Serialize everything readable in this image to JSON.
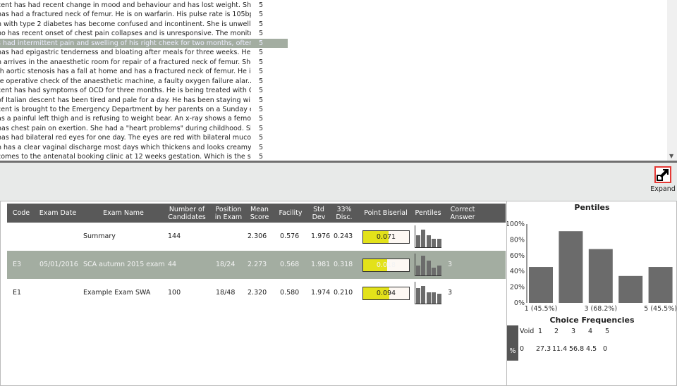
{
  "question_list": {
    "rows": [
      {
        "text": "cent has had recent change in mood and behaviour and has lost weight. She has...",
        "count": "5"
      },
      {
        "text": "has had a fractured neck of femur. He is on warfarin. His pulse rate is 105bpm...",
        "count": "5"
      },
      {
        "text": "n with type 2 diabetes has become confused and incontinent. She is unwell, wit...",
        "count": "5"
      },
      {
        "text": "ho has recent onset of chest pain collapses and is unresponsive. The monitor s...",
        "count": "5"
      },
      {
        "text": "s had intermittent pain and swelling of his right cheek for two months, often...",
        "count": "5",
        "selected": true
      },
      {
        "text": " has had epigastric tenderness and bloating after meals for three weeks. Her m...",
        "count": "5"
      },
      {
        "text": "n arrives in the anaesthetic room for repair of a fractured neck of femur. She...",
        "count": "5"
      },
      {
        "text": "th aortic stenosis has a fall at home and has a fractured neck of femur. He i...",
        "count": "5"
      },
      {
        "text": "re operative check of the anaesthetic machine, a faulty oxygen failure alar...",
        "count": "5"
      },
      {
        "text": "cent has had symptoms of OCD for three months. He is being treated with CBT,...",
        "count": "5"
      },
      {
        "text": " of Italian descent has been tired and pale for a day. He has been staying wi...",
        "count": "5"
      },
      {
        "text": "cent is brought to the Emergency Department by her parents on a Sunday evenin...",
        "count": "5"
      },
      {
        "text": "as a painful left thigh and is refusing to weight bear. An x-ray shows a femo...",
        "count": "5"
      },
      {
        "text": " has chest pain on exertion. She had a \"heart problems\" during childhood. She...",
        "count": "5"
      },
      {
        "text": " has had bilateral red eyes for one day. The eyes are red with bilateral mucop...",
        "count": "5"
      },
      {
        "text": "n has a clear vaginal discharge most days which thickens and looks creamy each...",
        "count": "5"
      },
      {
        "text": " comes to the antenatal booking clinic at 12 weeks gestation. Which is the sin...",
        "count": "5"
      }
    ]
  },
  "toolbar": {
    "expand_label": "Expand",
    "expand_icon": "expand-arrow-icon"
  },
  "table": {
    "headers": [
      "Code",
      "Exam Date",
      "Exam Name",
      "Number of Candidates",
      "Position in Exam",
      "Mean Score",
      "Facility",
      "Std Dev",
      "33% Disc.",
      "Point Biserial",
      "Pentiles",
      "Correct Answer"
    ],
    "rows": [
      {
        "code": "",
        "date": "",
        "name": "Summary",
        "candidates": "144",
        "position": "",
        "mean": "2.306",
        "facility": "0.576",
        "std": "1.976",
        "disc": "0.243",
        "pb": "0.071",
        "pb_fill": 0.56,
        "pentiles": [
          55,
          80,
          55,
          38,
          38
        ],
        "correct": ""
      },
      {
        "code": "E3",
        "date": "05/01/2016",
        "name": "SCA autumn 2015 exam",
        "candidates": "44",
        "position": "18/24",
        "mean": "2.273",
        "facility": "0.568",
        "std": "1.981",
        "disc": "0.318",
        "pb": "0.018",
        "pb_fill": 0.53,
        "pentiles": [
          45.5,
          90.9,
          68.2,
          34.1,
          45.5
        ],
        "correct": "3",
        "selected": true
      },
      {
        "code": "E1",
        "date": "",
        "name": "Example Exam SWA",
        "candidates": "100",
        "position": "18/48",
        "mean": "2.320",
        "facility": "0.580",
        "std": "1.974",
        "disc": "0.210",
        "pb": "0.094",
        "pb_fill": 0.57,
        "pentiles": [
          72,
          80,
          52,
          52,
          45
        ],
        "correct": "3"
      }
    ]
  },
  "chart_data": {
    "type": "bar",
    "title": "Pentiles",
    "categories": [
      "1",
      "2",
      "3",
      "4",
      "5"
    ],
    "tick_labels": [
      "1 (45.5%)",
      "3 (68.2%)",
      "5 (45.5%)"
    ],
    "values": [
      45.5,
      90.9,
      68.2,
      34.1,
      45.5
    ],
    "yticks": [
      "0%",
      "20%",
      "40%",
      "60%",
      "80%",
      "100%"
    ],
    "ylim": [
      0,
      100
    ],
    "color": "#6b6b6b"
  },
  "choice_frequencies": {
    "title": "Choice Frequencies",
    "row_label": "%",
    "choices": [
      "Void",
      "1",
      "2",
      "3",
      "4",
      "5"
    ],
    "values": [
      "0",
      "27.3",
      "11.4",
      "56.8",
      "4.5",
      "0"
    ]
  },
  "colors": {
    "selected_row": "#a3ada1",
    "header": "#595959",
    "pb_fill": "#e3e21a",
    "expand_border": "#e53935"
  }
}
